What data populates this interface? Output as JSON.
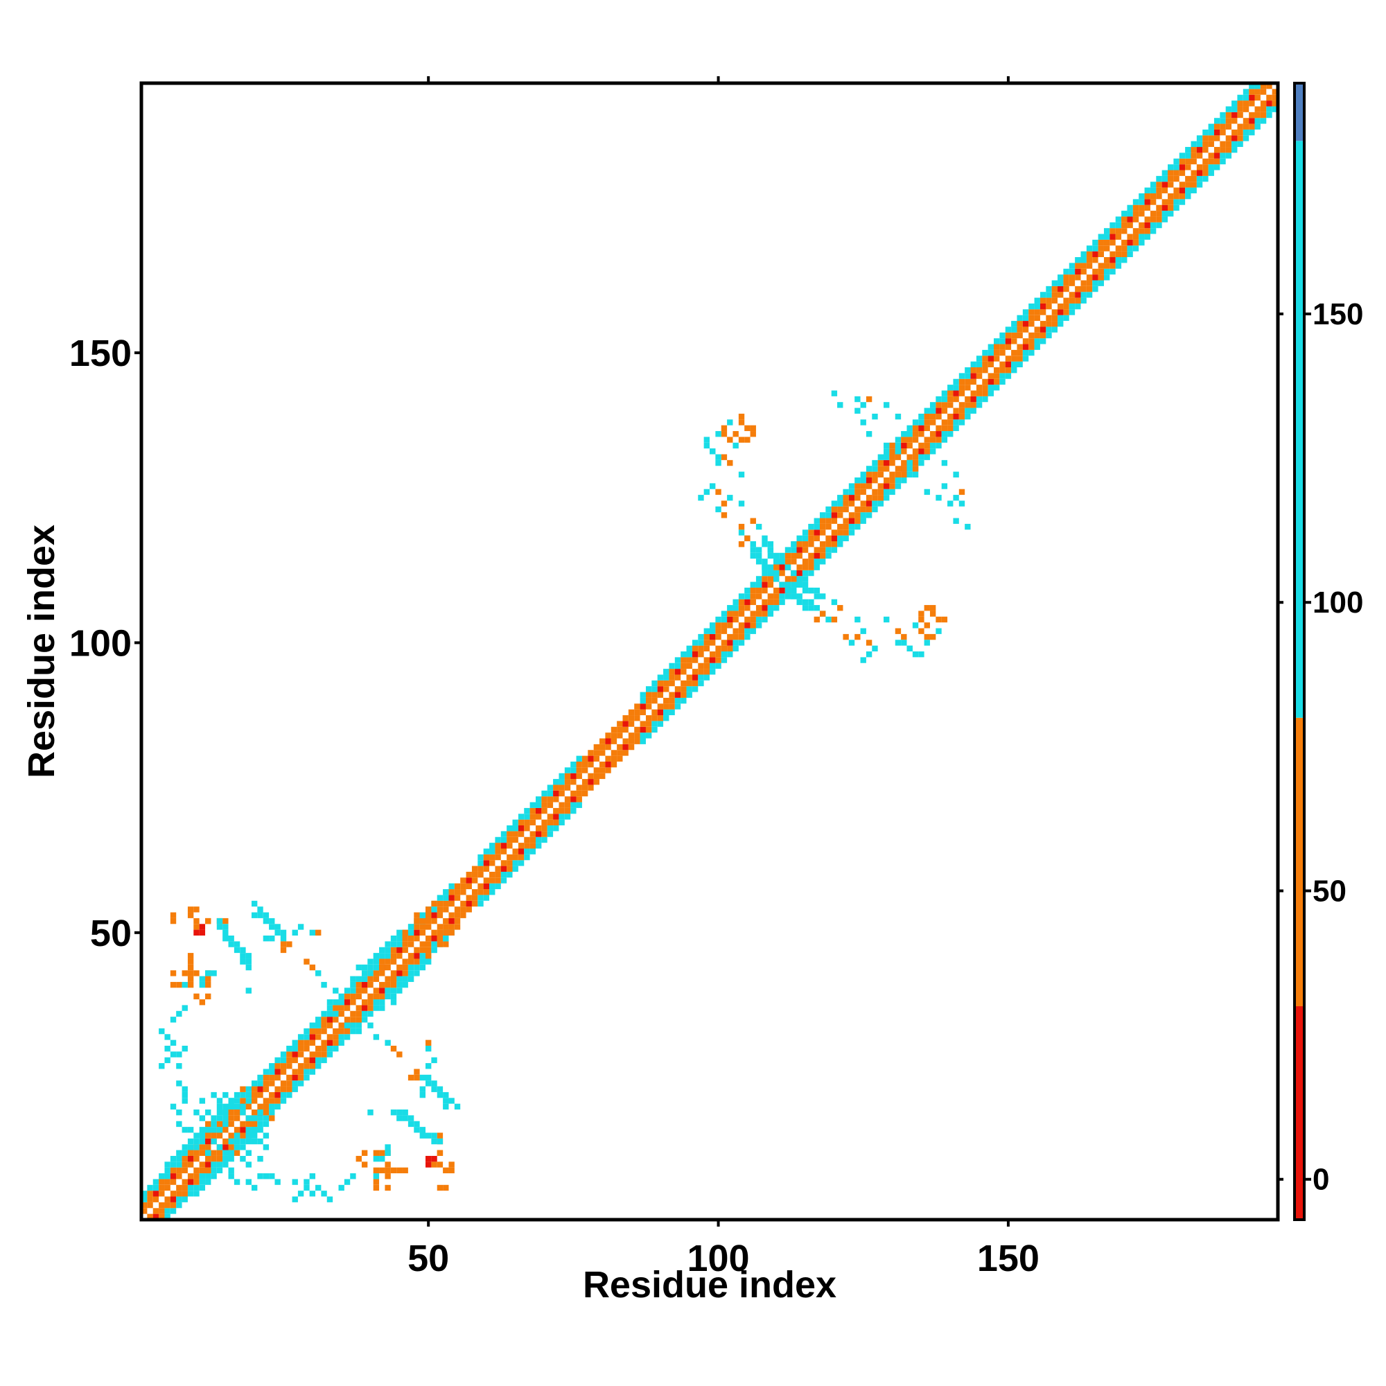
{
  "chart_data": {
    "type": "heatmap",
    "title": "",
    "xlabel": "Residue index",
    "ylabel": "Residue index",
    "xlim": [
      1,
      196
    ],
    "ylim": [
      1,
      196
    ],
    "x_ticks": [
      "50",
      "100",
      "150"
    ],
    "y_ticks": [
      "50",
      "100",
      "150"
    ],
    "grid": false,
    "legend": "colorbar-right",
    "colorbar": {
      "ticks": [
        "0",
        "50",
        "100",
        "150"
      ],
      "range": [
        -7,
        190
      ],
      "bands": [
        {
          "from": -7,
          "to": 30,
          "color": "#e8140a"
        },
        {
          "from": 30,
          "to": 80,
          "color": "#f57d0a"
        },
        {
          "from": 80,
          "to": 180,
          "color": "#19dce6"
        },
        {
          "from": 180,
          "to": 190,
          "color": "#4f7fc0"
        }
      ]
    },
    "diagonal_band_halfwidth": 4,
    "cells": [
      [
        48,
        52,
        40
      ],
      [
        48,
        53,
        45
      ],
      [
        49,
        52,
        60
      ],
      [
        49,
        53,
        95
      ],
      [
        50,
        53,
        60
      ],
      [
        50,
        54,
        40
      ],
      [
        51,
        55,
        30
      ],
      [
        47,
        51,
        90
      ],
      [
        46,
        50,
        70
      ],
      [
        45,
        50,
        95
      ],
      [
        44,
        49,
        95
      ],
      [
        43,
        48,
        100
      ],
      [
        42,
        47,
        110
      ],
      [
        41,
        46,
        95
      ],
      [
        40,
        45,
        120
      ],
      [
        39,
        44,
        95
      ],
      [
        38,
        44,
        95
      ],
      [
        37,
        42,
        110
      ],
      [
        40,
        43,
        95
      ],
      [
        42,
        44,
        60
      ],
      [
        5,
        10,
        95
      ],
      [
        6,
        11,
        120
      ],
      [
        7,
        12,
        95
      ],
      [
        8,
        13,
        130
      ],
      [
        9,
        14,
        95
      ],
      [
        10,
        15,
        120
      ],
      [
        11,
        16,
        95
      ],
      [
        12,
        17,
        60
      ],
      [
        13,
        18,
        95
      ],
      [
        14,
        19,
        120
      ],
      [
        15,
        20,
        95
      ],
      [
        16,
        21,
        130
      ],
      [
        17,
        22,
        95
      ],
      [
        18,
        23,
        70
      ],
      [
        10,
        13,
        120
      ],
      [
        12,
        12,
        150
      ],
      [
        9,
        12,
        60
      ],
      [
        11,
        15,
        150
      ],
      [
        13,
        14,
        120
      ],
      [
        14,
        16,
        140
      ],
      [
        15,
        17,
        95
      ],
      [
        19,
        21,
        95
      ],
      [
        20,
        22,
        70
      ],
      [
        8,
        16,
        95
      ],
      [
        9,
        16,
        120
      ],
      [
        7,
        17,
        95
      ],
      [
        10,
        19,
        120
      ],
      [
        12,
        19,
        95
      ],
      [
        14,
        21,
        150
      ],
      [
        16,
        20,
        120
      ],
      [
        6,
        20,
        95
      ],
      [
        7,
        19,
        95
      ],
      [
        11,
        21,
        95
      ],
      [
        13,
        22,
        130
      ],
      [
        18,
        20,
        95
      ],
      [
        19,
        18,
        130
      ],
      [
        20,
        16,
        130
      ],
      [
        21,
        16,
        120
      ],
      [
        22,
        15,
        95
      ],
      [
        20,
        14,
        95
      ],
      [
        19,
        15,
        120
      ],
      [
        17,
        13,
        130
      ],
      [
        18,
        11,
        150
      ],
      [
        16,
        12,
        95
      ],
      [
        21,
        8,
        150
      ],
      [
        22,
        8,
        140
      ],
      [
        23,
        8,
        120
      ],
      [
        24,
        7,
        150
      ],
      [
        6,
        29,
        150
      ],
      [
        7,
        29,
        150
      ],
      [
        8,
        30,
        95
      ],
      [
        4,
        27,
        95
      ],
      [
        5,
        28,
        95
      ],
      [
        7,
        27,
        95
      ],
      [
        6,
        43,
        50
      ],
      [
        6,
        41,
        50
      ],
      [
        7,
        41,
        60
      ],
      [
        8,
        41,
        95
      ],
      [
        9,
        43,
        70
      ],
      [
        10,
        43,
        60
      ],
      [
        11,
        42,
        95
      ],
      [
        12,
        43,
        40
      ],
      [
        13,
        43,
        95
      ],
      [
        12,
        41,
        50
      ],
      [
        10,
        52,
        40
      ],
      [
        10,
        51,
        50
      ],
      [
        12,
        52,
        40
      ],
      [
        14,
        52,
        30
      ],
      [
        15,
        52,
        40
      ],
      [
        20,
        55,
        150
      ],
      [
        21,
        54,
        150
      ],
      [
        21,
        53,
        140
      ],
      [
        22,
        53,
        120
      ],
      [
        22,
        52,
        150
      ],
      [
        23,
        52,
        130
      ],
      [
        23,
        51,
        150
      ],
      [
        24,
        51,
        140
      ],
      [
        24,
        50,
        120
      ],
      [
        25,
        50,
        150
      ],
      [
        20,
        53,
        140
      ],
      [
        25,
        49,
        95
      ],
      [
        27,
        50,
        95
      ],
      [
        28,
        51,
        95
      ],
      [
        30,
        50,
        95
      ],
      [
        31,
        50,
        70
      ],
      [
        45,
        19,
        150
      ],
      [
        46,
        19,
        140
      ],
      [
        46,
        18,
        150
      ],
      [
        47,
        18,
        120
      ],
      [
        47,
        17,
        150
      ],
      [
        48,
        17,
        130
      ],
      [
        48,
        16,
        150
      ],
      [
        49,
        16,
        140
      ],
      [
        49,
        15,
        120
      ],
      [
        50,
        15,
        150
      ],
      [
        51,
        15,
        130
      ],
      [
        51,
        14,
        150
      ],
      [
        52,
        14,
        150
      ],
      [
        45,
        18,
        130
      ],
      [
        44,
        19,
        95
      ],
      [
        40,
        19,
        95
      ],
      [
        47,
        25,
        70
      ],
      [
        48,
        25,
        60
      ],
      [
        49,
        22,
        95
      ],
      [
        49,
        23,
        95
      ],
      [
        48,
        26,
        40
      ],
      [
        50,
        11,
        10
      ],
      [
        50,
        10,
        20
      ],
      [
        51,
        11,
        10
      ],
      [
        52,
        12,
        40
      ],
      [
        53,
        9,
        40
      ],
      [
        54,
        9,
        50
      ],
      [
        52,
        6,
        40
      ],
      [
        53,
        6,
        30
      ],
      [
        54,
        10,
        50
      ],
      [
        30,
        5,
        150
      ],
      [
        31,
        6,
        150
      ],
      [
        32,
        5,
        130
      ],
      [
        33,
        4,
        140
      ],
      [
        36,
        7,
        95
      ],
      [
        35,
        6,
        150
      ],
      [
        37,
        8,
        120
      ],
      [
        39,
        10,
        60
      ],
      [
        41,
        9,
        40
      ],
      [
        42,
        9,
        60
      ],
      [
        43,
        8,
        60
      ],
      [
        44,
        9,
        60
      ],
      [
        45,
        9,
        50
      ],
      [
        46,
        9,
        40
      ],
      [
        38,
        11,
        70
      ],
      [
        39,
        12,
        70
      ],
      [
        41,
        11,
        95
      ],
      [
        42,
        12,
        60
      ],
      [
        43,
        12,
        95
      ],
      [
        36,
        34,
        95
      ],
      [
        38,
        33,
        130
      ],
      [
        40,
        34,
        95
      ],
      [
        41,
        32,
        95
      ],
      [
        43,
        31,
        95
      ],
      [
        44,
        30,
        70
      ],
      [
        45,
        29,
        40
      ],
      [
        101,
        136,
        40
      ],
      [
        102,
        135,
        60
      ],
      [
        103,
        134,
        95
      ],
      [
        104,
        135,
        50
      ],
      [
        105,
        135,
        40
      ],
      [
        105,
        137,
        70
      ],
      [
        106,
        137,
        60
      ],
      [
        106,
        136,
        70
      ],
      [
        99,
        133,
        95
      ],
      [
        100,
        131,
        95
      ],
      [
        101,
        132,
        60
      ],
      [
        102,
        131,
        50
      ],
      [
        104,
        129,
        95
      ],
      [
        99,
        127,
        95
      ],
      [
        100,
        126,
        40
      ],
      [
        102,
        125,
        95
      ],
      [
        104,
        124,
        95
      ],
      [
        106,
        121,
        60
      ],
      [
        107,
        120,
        95
      ],
      [
        105,
        118,
        150
      ],
      [
        106,
        117,
        130
      ],
      [
        107,
        116,
        150
      ],
      [
        108,
        117,
        95
      ],
      [
        109,
        116,
        130
      ],
      [
        110,
        115,
        150
      ],
      [
        111,
        114,
        120
      ],
      [
        112,
        113,
        95
      ],
      [
        106,
        115,
        150
      ],
      [
        107,
        114,
        140
      ],
      [
        108,
        113,
        95
      ],
      [
        109,
        113,
        150
      ],
      [
        110,
        112,
        130
      ],
      [
        111,
        110,
        95
      ],
      [
        112,
        109,
        140
      ],
      [
        113,
        108,
        95
      ],
      [
        114,
        108,
        95
      ],
      [
        115,
        107,
        120
      ],
      [
        116,
        106,
        95
      ],
      [
        117,
        104,
        40
      ],
      [
        118,
        105,
        60
      ],
      [
        119,
        104,
        95
      ],
      [
        120,
        104,
        60
      ],
      [
        114,
        110,
        95
      ],
      [
        115,
        109,
        95
      ],
      [
        116,
        109,
        150
      ],
      [
        117,
        109,
        95
      ],
      [
        118,
        108,
        120
      ],
      [
        122,
        101,
        60
      ],
      [
        123,
        100,
        95
      ],
      [
        124,
        101,
        40
      ],
      [
        125,
        97,
        95
      ],
      [
        126,
        98,
        95
      ],
      [
        132,
        100,
        150
      ],
      [
        133,
        99,
        95
      ],
      [
        134,
        98,
        95
      ],
      [
        135,
        98,
        130
      ],
      [
        136,
        100,
        95
      ],
      [
        137,
        101,
        70
      ],
      [
        138,
        104,
        40
      ],
      [
        139,
        104,
        60
      ],
      [
        138,
        102,
        95
      ],
      [
        136,
        103,
        50
      ],
      [
        124,
        142,
        95
      ],
      [
        125,
        141,
        150
      ],
      [
        126,
        142,
        60
      ],
      [
        127,
        139,
        95
      ],
      [
        129,
        141,
        95
      ],
      [
        131,
        139,
        95
      ],
      [
        130,
        134,
        60
      ],
      [
        131,
        133,
        95
      ],
      [
        132,
        130,
        60
      ],
      [
        133,
        131,
        95
      ],
      [
        134,
        129,
        150
      ],
      [
        136,
        126,
        95
      ],
      [
        138,
        125,
        95
      ],
      [
        140,
        124,
        95
      ],
      [
        141,
        121,
        95
      ],
      [
        143,
        120,
        95
      ]
    ]
  }
}
